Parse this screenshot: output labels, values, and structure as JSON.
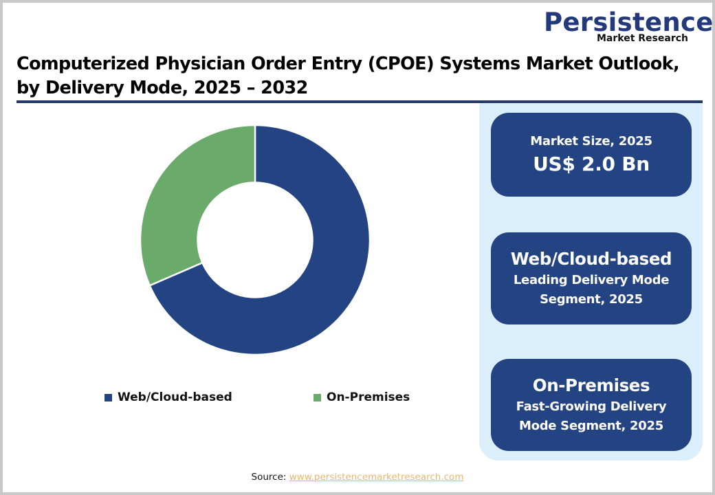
{
  "logo": {
    "main": "Persistence",
    "sub": "Market Research"
  },
  "title": {
    "line1": "Computerized Physician Order Entry (CPOE) Systems Market Outlook,",
    "line2": "by Delivery Mode, 2025 – 2032"
  },
  "colors": {
    "primary_navy": "#244383",
    "green": "#6aaa6a",
    "panel_bg": "#dbeefb",
    "rule": "#24396a",
    "link": "#e8b66a"
  },
  "chart_data": {
    "type": "pie",
    "subtype": "donut",
    "title": "Computerized Physician Order Entry (CPOE) Systems Market Outlook, by Delivery Mode, 2025 – 2032",
    "categories": [
      "Web/Cloud-based",
      "On-Premises"
    ],
    "values": [
      68.5,
      31.5
    ],
    "unit": "% share (estimated from slice angles)",
    "colors": [
      "#244383",
      "#6aaa6a"
    ],
    "start_angle_deg": 0,
    "direction": "clockwise",
    "inner_radius_ratio": 0.5,
    "legend_position": "bottom",
    "data_labels": false
  },
  "legend": {
    "items": [
      {
        "label": "Web/Cloud-based",
        "color": "#244383"
      },
      {
        "label": "On-Premises",
        "color": "#6aaa6a"
      }
    ]
  },
  "cards": [
    {
      "line1": "Market Size, 2025",
      "line2": "US$ 2.0 Bn"
    },
    {
      "line1": "Web/Cloud-based",
      "line2": "Leading Delivery Mode",
      "line3": "Segment, 2025"
    },
    {
      "line1": "On-Premises",
      "line2": "Fast-Growing Delivery",
      "line3": "Mode Segment, 2025"
    }
  ],
  "source": {
    "label": "Source:",
    "link_text": "www.persistencemarketresearch.com"
  }
}
